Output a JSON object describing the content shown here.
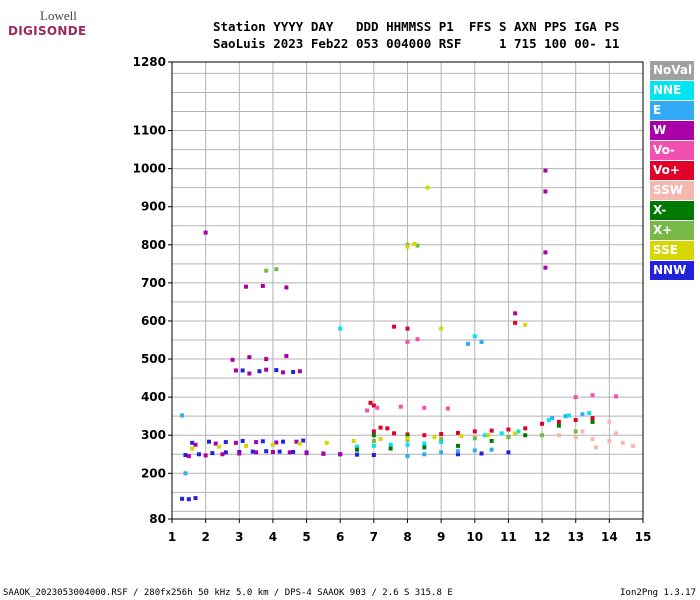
{
  "logo": {
    "line1": "Lowell",
    "line2": "DIGISONDE"
  },
  "header": {
    "line1": "Station YYYY DAY   DDD HHMMSS P1  FFS S AXN PPS IGA PS",
    "line2": "SaoLuis 2023 Feb22 053 004000 RSF     1 715 100 00- 11"
  },
  "footer": "SAAOK_2023053004000.RSF / 280fx256h 50 kHz 5.0 km / DPS-4 SAAOK 903 / 2.6 S 315.8 E",
  "version": "Ion2Png 1.3.17",
  "legend": [
    {
      "label": "NoVal",
      "color": "#a0a0a0"
    },
    {
      "label": "NNE",
      "color": "#00e5f0"
    },
    {
      "label": "E",
      "color": "#33aaf5"
    },
    {
      "label": "W",
      "color": "#aa00aa"
    },
    {
      "label": "Vo-",
      "color": "#f050b0"
    },
    {
      "label": "Vo+",
      "color": "#e0002a"
    },
    {
      "label": "SSW",
      "color": "#f5b8b0"
    },
    {
      "label": "X-",
      "color": "#007a00"
    },
    {
      "label": "X+",
      "color": "#78b848"
    },
    {
      "label": "SSE",
      "color": "#d6d600"
    },
    {
      "label": "NNW",
      "color": "#2222dd"
    }
  ],
  "chart_data": {
    "type": "scatter",
    "xlim": [
      1,
      15
    ],
    "ylim": [
      80,
      1280
    ],
    "x_ticks": [
      1,
      2,
      3,
      4,
      5,
      6,
      7,
      8,
      9,
      10,
      11,
      12,
      13,
      14,
      15
    ],
    "y_ticks": [
      80,
      200,
      300,
      400,
      500,
      600,
      700,
      800,
      900,
      1000,
      1100,
      1280
    ],
    "grid": true,
    "legend_position": "right",
    "series": [
      {
        "name": "NNW",
        "points": [
          [
            1.3,
            133
          ],
          [
            1.5,
            132
          ],
          [
            1.7,
            135
          ],
          [
            1.4,
            248
          ],
          [
            1.8,
            250
          ],
          [
            2.2,
            253
          ],
          [
            2.6,
            255
          ],
          [
            3.0,
            256
          ],
          [
            3.4,
            257
          ],
          [
            3.8,
            258
          ],
          [
            4.2,
            257
          ],
          [
            4.6,
            256
          ],
          [
            5.0,
            255
          ],
          [
            5.5,
            252
          ],
          [
            6.0,
            250
          ],
          [
            6.5,
            249
          ],
          [
            7.0,
            248
          ],
          [
            1.6,
            280
          ],
          [
            2.1,
            283
          ],
          [
            2.6,
            282
          ],
          [
            3.1,
            285
          ],
          [
            3.7,
            284
          ],
          [
            4.3,
            283
          ],
          [
            4.9,
            286
          ],
          [
            3.1,
            470
          ],
          [
            3.6,
            468
          ],
          [
            4.1,
            471
          ],
          [
            4.6,
            466
          ],
          [
            9.5,
            250
          ],
          [
            10.2,
            252
          ],
          [
            11.0,
            255
          ]
        ]
      },
      {
        "name": "W",
        "points": [
          [
            1.5,
            245
          ],
          [
            2.0,
            247
          ],
          [
            2.5,
            250
          ],
          [
            3.0,
            252
          ],
          [
            3.5,
            255
          ],
          [
            4.0,
            256
          ],
          [
            4.5,
            255
          ],
          [
            5.0,
            253
          ],
          [
            5.5,
            251
          ],
          [
            6.0,
            250
          ],
          [
            1.7,
            275
          ],
          [
            2.3,
            278
          ],
          [
            2.9,
            280
          ],
          [
            3.5,
            282
          ],
          [
            4.1,
            281
          ],
          [
            4.7,
            283
          ],
          [
            2.9,
            470
          ],
          [
            3.3,
            462
          ],
          [
            3.8,
            472
          ],
          [
            4.3,
            465
          ],
          [
            4.8,
            468
          ],
          [
            2.8,
            498
          ],
          [
            3.3,
            505
          ],
          [
            3.8,
            500
          ],
          [
            4.4,
            508
          ],
          [
            3.2,
            690
          ],
          [
            3.7,
            692
          ],
          [
            4.4,
            688
          ],
          [
            12.1,
            995
          ],
          [
            12.1,
            940
          ],
          [
            12.1,
            780
          ],
          [
            12.1,
            740
          ],
          [
            2.0,
            832
          ],
          [
            11.2,
            620
          ]
        ]
      },
      {
        "name": "E",
        "points": [
          [
            8.0,
            245
          ],
          [
            8.5,
            250
          ],
          [
            9.0,
            255
          ],
          [
            9.5,
            258
          ],
          [
            10.0,
            260
          ],
          [
            10.5,
            262
          ],
          [
            12.3,
            345
          ],
          [
            12.7,
            350
          ],
          [
            13.2,
            355
          ],
          [
            1.3,
            352
          ],
          [
            1.4,
            200
          ],
          [
            9.8,
            540
          ],
          [
            10.2,
            545
          ]
        ]
      },
      {
        "name": "NNE",
        "points": [
          [
            6.5,
            270
          ],
          [
            7.0,
            272
          ],
          [
            7.5,
            275
          ],
          [
            8.0,
            275
          ],
          [
            8.5,
            278
          ],
          [
            9.0,
            282
          ],
          [
            10.3,
            300
          ],
          [
            10.8,
            305
          ],
          [
            11.3,
            310
          ],
          [
            12.2,
            340
          ],
          [
            12.8,
            352
          ],
          [
            13.4,
            358
          ],
          [
            6.0,
            580
          ],
          [
            10.0,
            560
          ]
        ]
      },
      {
        "name": "Vo+",
        "points": [
          [
            7.0,
            310
          ],
          [
            7.2,
            320
          ],
          [
            7.4,
            318
          ],
          [
            7.6,
            305
          ],
          [
            8.0,
            302
          ],
          [
            8.5,
            300
          ],
          [
            9.0,
            303
          ],
          [
            9.5,
            306
          ],
          [
            10.0,
            310
          ],
          [
            10.5,
            312
          ],
          [
            11.0,
            315
          ],
          [
            11.5,
            318
          ],
          [
            12.0,
            330
          ],
          [
            12.5,
            335
          ],
          [
            13.0,
            340
          ],
          [
            13.5,
            345
          ],
          [
            7.0,
            378
          ],
          [
            6.9,
            385
          ],
          [
            7.6,
            585
          ],
          [
            8.0,
            580
          ],
          [
            11.2,
            595
          ]
        ]
      },
      {
        "name": "Vo-",
        "points": [
          [
            6.8,
            365
          ],
          [
            7.1,
            372
          ],
          [
            7.8,
            375
          ],
          [
            8.5,
            372
          ],
          [
            9.2,
            370
          ],
          [
            13.0,
            400
          ],
          [
            13.5,
            405
          ],
          [
            14.2,
            402
          ],
          [
            8.0,
            545
          ],
          [
            8.3,
            552
          ]
        ]
      },
      {
        "name": "SSW",
        "points": [
          [
            12.5,
            300
          ],
          [
            13.0,
            295
          ],
          [
            13.5,
            290
          ],
          [
            14.0,
            285
          ],
          [
            14.4,
            280
          ],
          [
            14.7,
            272
          ],
          [
            13.2,
            310
          ],
          [
            14.2,
            305
          ],
          [
            14.0,
            335
          ],
          [
            13.6,
            268
          ]
        ]
      },
      {
        "name": "X-",
        "points": [
          [
            6.5,
            262
          ],
          [
            7.5,
            265
          ],
          [
            8.5,
            268
          ],
          [
            9.5,
            272
          ],
          [
            10.5,
            285
          ],
          [
            11.5,
            300
          ],
          [
            12.5,
            325
          ],
          [
            13.5,
            335
          ],
          [
            7.0,
            300
          ],
          [
            8.0,
            298
          ]
        ]
      },
      {
        "name": "X+",
        "points": [
          [
            7.0,
            285
          ],
          [
            8.0,
            288
          ],
          [
            9.0,
            290
          ],
          [
            10.0,
            292
          ],
          [
            11.0,
            295
          ],
          [
            12.0,
            300
          ],
          [
            13.0,
            310
          ],
          [
            3.8,
            732
          ],
          [
            4.1,
            736
          ],
          [
            8.0,
            800
          ],
          [
            8.3,
            798
          ]
        ]
      },
      {
        "name": "SSE",
        "points": [
          [
            1.6,
            265
          ],
          [
            2.4,
            270
          ],
          [
            3.2,
            272
          ],
          [
            4.0,
            275
          ],
          [
            4.8,
            278
          ],
          [
            5.6,
            280
          ],
          [
            6.4,
            285
          ],
          [
            7.2,
            290
          ],
          [
            8.0,
            292
          ],
          [
            8.8,
            295
          ],
          [
            9.6,
            298
          ],
          [
            10.4,
            300
          ],
          [
            11.2,
            305
          ],
          [
            8.0,
            795
          ],
          [
            8.2,
            802
          ],
          [
            8.6,
            950
          ],
          [
            9.0,
            580
          ],
          [
            11.5,
            590
          ]
        ]
      }
    ]
  }
}
